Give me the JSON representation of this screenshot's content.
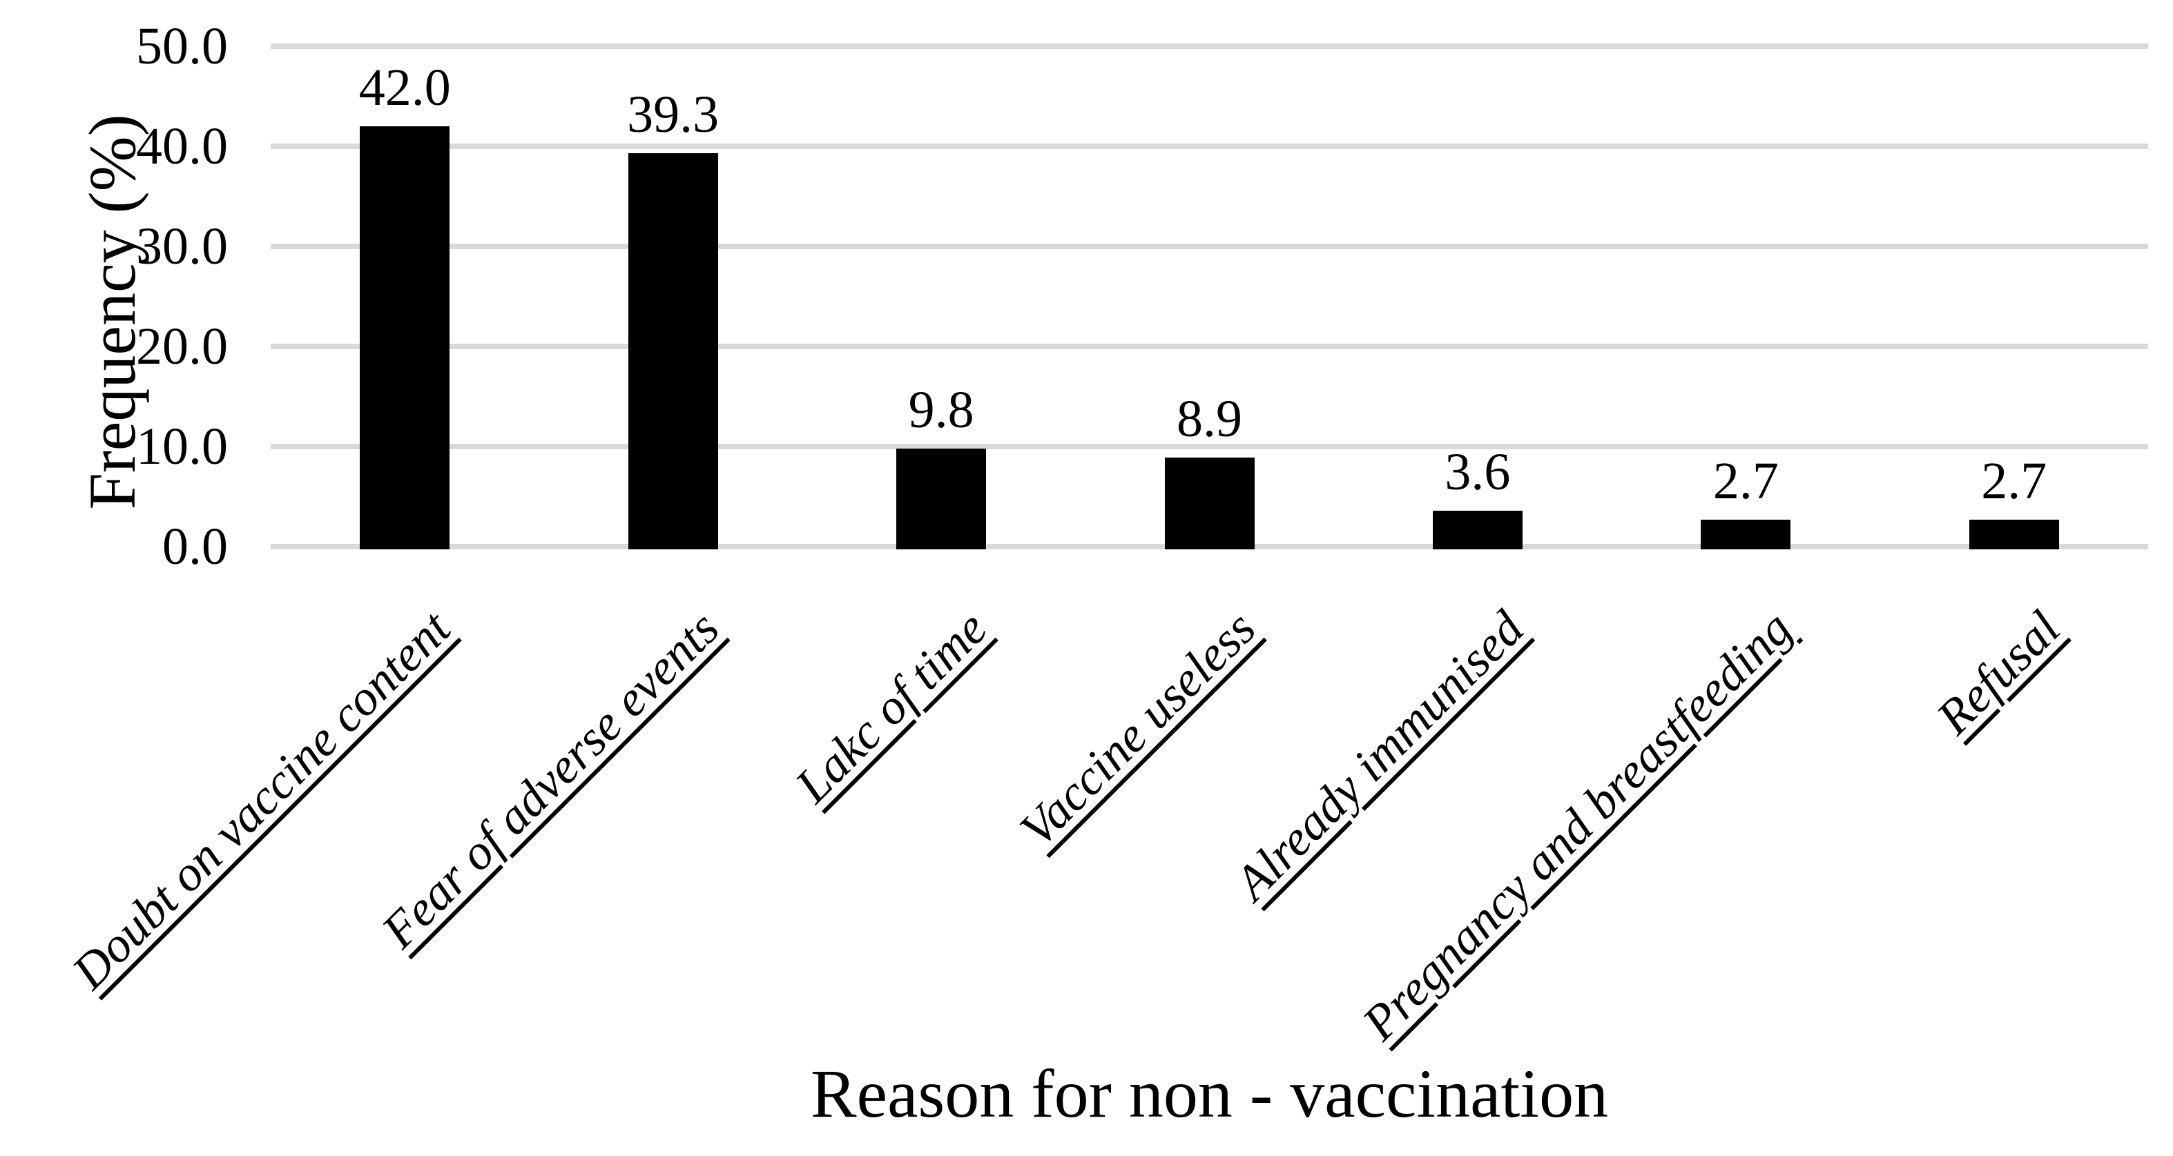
{
  "chart_data": {
    "type": "bar",
    "title": "",
    "xlabel": "Reason for non - vaccination",
    "ylabel": "Frequency (%)",
    "categories": [
      "Doubt on vaccine content",
      "Fear of adverse events",
      "Lakc of time",
      "Vaccine useless",
      "Already immunised",
      "Pregnancy and breastfeeding",
      "Refusal"
    ],
    "values": [
      42.0,
      39.3,
      9.8,
      8.9,
      3.6,
      2.7,
      2.7
    ],
    "value_labels": [
      "42.0",
      "39.3",
      "9.8",
      "8.9",
      "3.6",
      "2.7",
      "2.7"
    ],
    "ytick_labels": [
      "50.0",
      "40.0",
      "30.0",
      "20.0",
      "10.0",
      "0.0"
    ],
    "ylim": [
      0,
      50
    ],
    "grid": true,
    "legend": false,
    "bar_color": "#000000",
    "gridline_color": "#d9d9d9"
  }
}
